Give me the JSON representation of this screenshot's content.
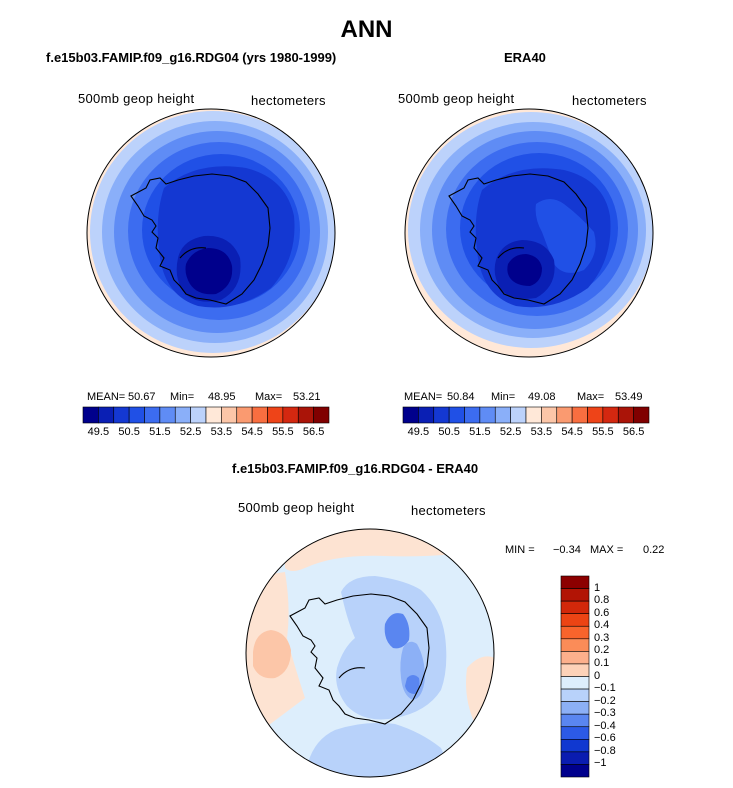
{
  "title": "ANN",
  "panels": [
    {
      "title": "f.e15b03.FAMIP.f09_g16.RDG04 (yrs 1980-1999)",
      "variable_label": "500mb geop height",
      "units_label": "hectometers",
      "stats": {
        "mean_label": "MEAN=",
        "mean": "50.67",
        "min_label": "Min=",
        "min": "48.95",
        "max_label": "Max=",
        "max": "53.21"
      }
    },
    {
      "title": "ERA40",
      "variable_label": "500mb geop height",
      "units_label": "hectometers",
      "stats": {
        "mean_label": "MEAN=",
        "mean": "50.84",
        "min_label": "Min=",
        "min": "49.08",
        "max_label": "Max=",
        "max": "53.49"
      }
    },
    {
      "title": "f.e15b03.FAMIP.f09_g16.RDG04 - ERA40",
      "variable_label": "500mb geop height",
      "units_label": "hectometers",
      "stats": {
        "min_label": "MIN =",
        "min": "−0.34",
        "max_label": "MAX =",
        "max": "0.22"
      }
    }
  ],
  "colorbar_top": {
    "ticks": [
      "49.5",
      "50.5",
      "51.5",
      "52.5",
      "53.5",
      "54.5",
      "55.5",
      "56.5"
    ],
    "colors": [
      "#00008c",
      "#0a1fb4",
      "#1438d2",
      "#2050e6",
      "#3c6cf0",
      "#5f8cf5",
      "#8aaff9",
      "#bcd2fb",
      "#ffe8d8",
      "#fcc6a8",
      "#fa9a70",
      "#f86e40",
      "#ee4418",
      "#d42810",
      "#aa1408",
      "#800000"
    ]
  },
  "colorbar_diff": {
    "ticks": [
      "1",
      "0.8",
      "0.6",
      "0.4",
      "0.3",
      "0.2",
      "0.1",
      "0",
      "−0.1",
      "−0.2",
      "−0.3",
      "−0.4",
      "−0.6",
      "−0.8",
      "−1"
    ],
    "colors": [
      "#8c0000",
      "#b21405",
      "#d2280a",
      "#ec4414",
      "#f8642c",
      "#fb8c58",
      "#fcb08c",
      "#fdd2b8",
      "#ddeefc",
      "#b8d2fa",
      "#8cb0f6",
      "#5a86f0",
      "#2c5ae6",
      "#1038d0",
      "#0a1cb0",
      "#00008c"
    ]
  },
  "map_colors": {
    "c1": "#00008c",
    "c2": "#0a1fb4",
    "c3": "#1438d2",
    "c4": "#2050e6",
    "c5": "#3c6cf0",
    "c6": "#5f8cf5",
    "c7": "#8aaff9",
    "c8": "#bcd2fb",
    "c9": "#ffe8d8",
    "d_pos2": "#fcc6a8",
    "d_pos1": "#fde3d2",
    "d_zero": "#ddeefc",
    "d_neg1": "#b8d2fa",
    "d_neg2": "#8cb0f6",
    "d_neg3": "#5a86f0"
  }
}
